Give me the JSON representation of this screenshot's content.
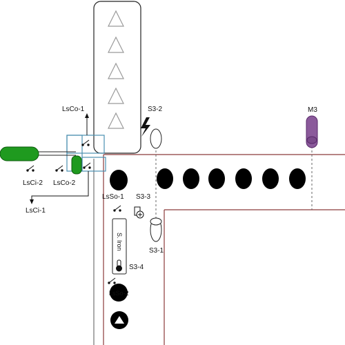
{
  "labels": {
    "lsco1": "LsCo-1",
    "lsco2": "LsCo-2",
    "lsci2": "LsCi-2",
    "lsci1": "LsCi-1",
    "s3_2": "S3-2",
    "m3": "M3",
    "lsso1": "LsSo-1",
    "s3_3": "S3-3",
    "s3_1": "S3-1",
    "s3_4": "S3-4",
    "lss2": "LsSo-2",
    "iron": "S. Iron"
  },
  "colors": {
    "green": "#1f9a1f",
    "purple": "#8b5a9b",
    "rail": "#8b3a3a",
    "box": "#4a8fb0",
    "black": "#000000"
  },
  "icons": {
    "hopper": "triangle-icon",
    "lightning": "lightning-icon",
    "sensor": "sensor-icon",
    "conveyor": "roller-icon",
    "switch": "switch-icon",
    "thermometer": "thermometer-icon",
    "eject": "eject-icon"
  }
}
